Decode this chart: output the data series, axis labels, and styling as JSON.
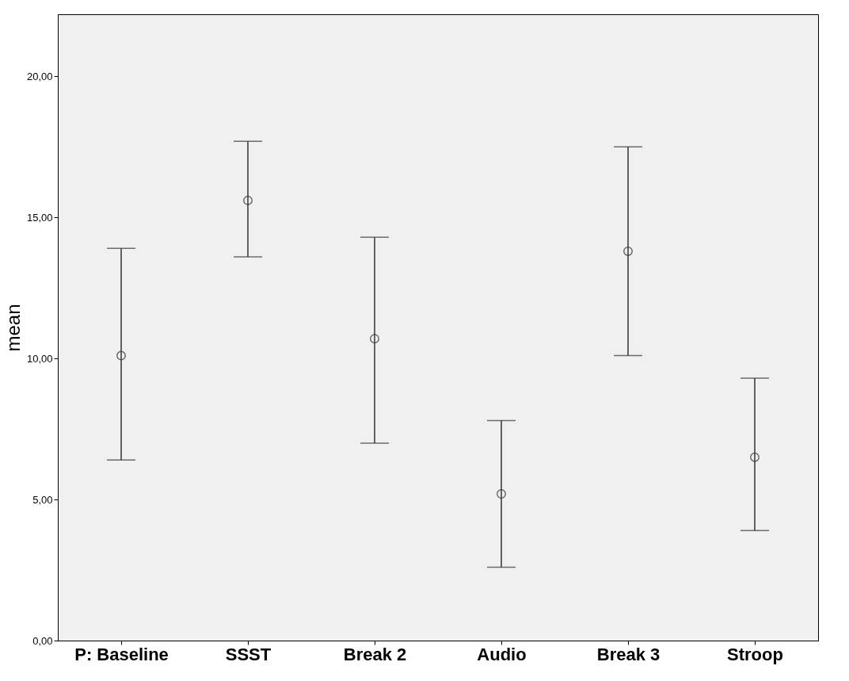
{
  "chart_data": {
    "type": "scatter",
    "ylabel": "mean",
    "categories": [
      "P: Baseline",
      "SSST",
      "Break 2",
      "Audio",
      "Break 3",
      "Stroop"
    ],
    "series": [
      {
        "color": "#333333",
        "values": [
          10.1,
          15.6,
          10.7,
          5.2,
          13.8,
          6.5
        ],
        "errors": [
          [
            6.4,
            13.9
          ],
          [
            13.6,
            17.7
          ],
          [
            7.0,
            14.3
          ],
          [
            2.6,
            7.8
          ],
          [
            10.1,
            17.5
          ],
          [
            3.9,
            9.3
          ]
        ]
      }
    ],
    "marker": "circle",
    "ylim": [
      0,
      22.2
    ],
    "yticks": [
      {
        "value": 0,
        "label": "0,00"
      },
      {
        "value": 5,
        "label": "5,00"
      },
      {
        "value": 10,
        "label": "10,00"
      },
      {
        "value": 15,
        "label": "15,00"
      },
      {
        "value": 20,
        "label": "20,00"
      }
    ],
    "grid": false
  }
}
